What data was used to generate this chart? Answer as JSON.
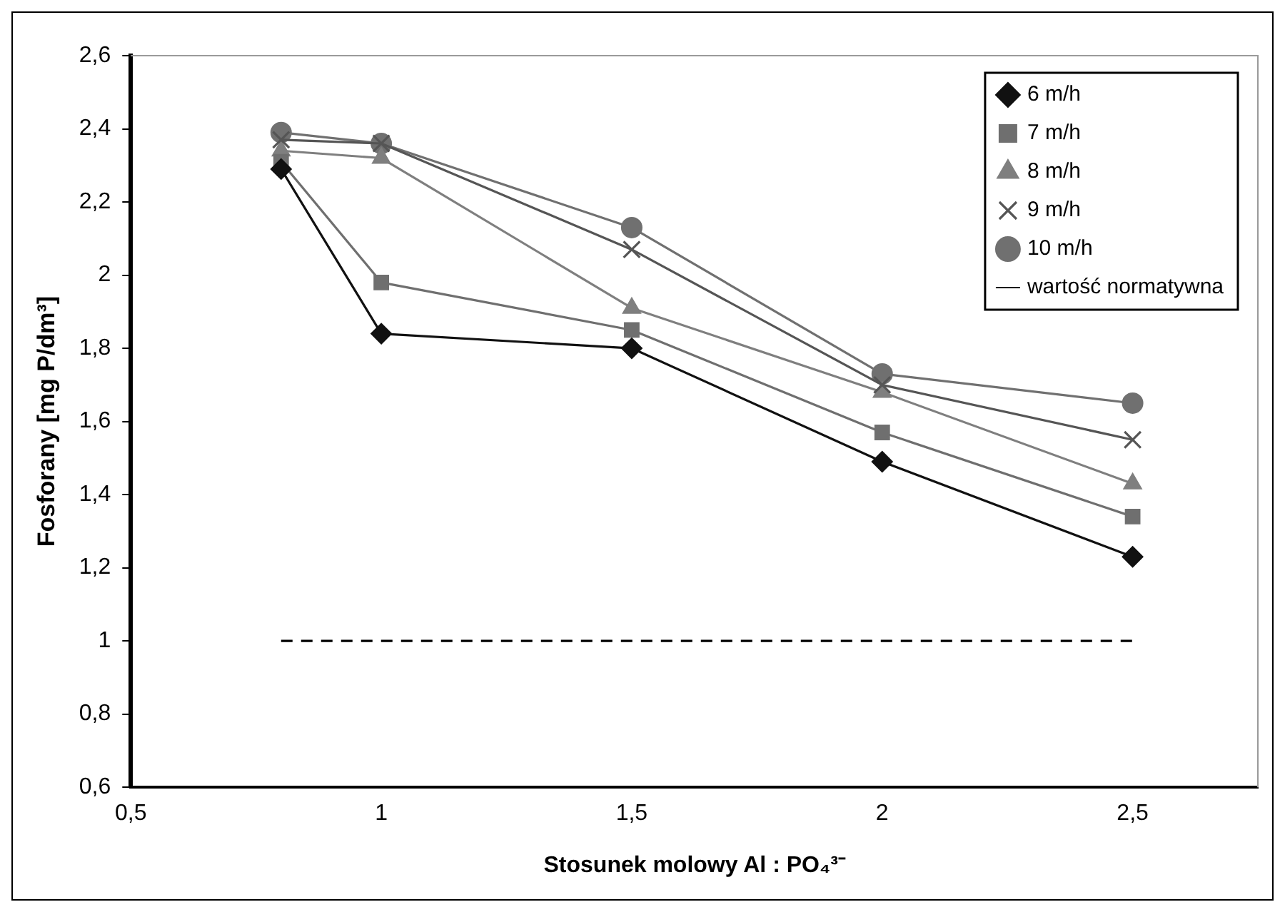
{
  "chart_data": {
    "type": "line",
    "xlabel": "Stosunek molowy Al : PO₄³⁻",
    "ylabel": "Fosforany [mg P/dm³]",
    "x": [
      0.8,
      1,
      1.5,
      2,
      2.5
    ],
    "series": [
      {
        "name": "6 m/h",
        "color": "#111111",
        "marker": "diamond",
        "values": [
          2.29,
          1.84,
          1.8,
          1.49,
          1.23
        ]
      },
      {
        "name": "7 m/h",
        "color": "#6f6f6f",
        "marker": "square",
        "values": [
          2.31,
          1.98,
          1.85,
          1.57,
          1.34
        ]
      },
      {
        "name": "8 m/h",
        "color": "#7f7f7f",
        "marker": "triangle",
        "values": [
          2.34,
          2.32,
          1.91,
          1.68,
          1.43
        ]
      },
      {
        "name": "9 m/h",
        "color": "#555555",
        "marker": "cross",
        "values": [
          2.37,
          2.36,
          2.07,
          1.7,
          1.55
        ]
      },
      {
        "name": "10 m/h",
        "color": "#707070",
        "marker": "circle",
        "values": [
          2.39,
          2.36,
          2.13,
          1.73,
          1.65
        ]
      },
      {
        "name": "wartość normatywna",
        "color": "#000000",
        "marker": "none",
        "line_style": "dashed",
        "values": [
          1,
          1,
          1,
          1,
          1
        ]
      }
    ],
    "xlim": [
      0.5,
      2.75
    ],
    "xticks": [
      {
        "value": 0.5,
        "label": "0,5"
      },
      1,
      {
        "value": 1.5,
        "label": "1,5"
      },
      2,
      {
        "value": 2.5,
        "label": "2,5"
      }
    ],
    "ylim": [
      0.6,
      2.6
    ],
    "yticks": [
      {
        "value": 0.6,
        "label": "0,6"
      },
      {
        "value": 0.8,
        "label": "0,8"
      },
      1,
      {
        "value": 1.2,
        "label": "1,2"
      },
      {
        "value": 1.4,
        "label": "1,4"
      },
      {
        "value": 1.6,
        "label": "1,6"
      },
      {
        "value": 1.8,
        "label": "1,8"
      },
      2,
      {
        "value": 2.2,
        "label": "2,2"
      },
      {
        "value": 2.4,
        "label": "2,4"
      },
      {
        "value": 2.6,
        "label": "2,6"
      }
    ],
    "grid": false,
    "legend": "top right"
  }
}
